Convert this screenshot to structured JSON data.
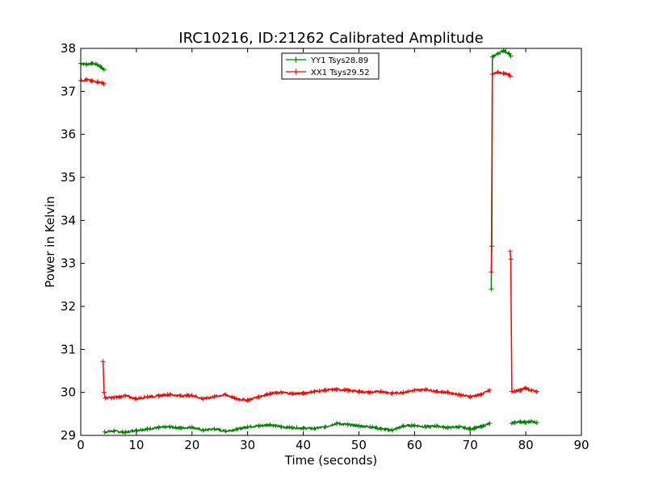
{
  "chart_data": {
    "type": "line",
    "title": "IRC10216, ID:21262 Calibrated Amplitude",
    "xlabel": "Time (seconds)",
    "ylabel": "Power in Kelvin",
    "xlim": [
      0,
      90
    ],
    "ylim": [
      29,
      38
    ],
    "xticks": [
      "0",
      "10",
      "20",
      "30",
      "40",
      "50",
      "60",
      "70",
      "80",
      "90"
    ],
    "yticks": [
      "29",
      "30",
      "31",
      "32",
      "33",
      "34",
      "35",
      "36",
      "37",
      "38"
    ],
    "grid": false,
    "legend_position": "top-center",
    "series": [
      {
        "name": "YY1 Tsys28.89",
        "color": "#008000",
        "marker": "plus",
        "segments": [
          {
            "x": [
              0,
              1,
              2,
              3,
              3.8,
              4.2
            ],
            "y": [
              37.65,
              37.63,
              37.65,
              37.62,
              37.55,
              37.5
            ]
          },
          {
            "x": [
              4.3,
              6,
              8,
              10,
              12,
              14,
              16,
              18,
              20,
              22,
              24,
              26,
              28,
              30,
              32,
              34,
              36,
              38,
              40,
              42,
              44,
              46,
              48,
              50,
              52,
              54,
              56,
              58,
              60,
              62,
              64,
              66,
              68,
              70,
              72,
              73.5
            ],
            "y": [
              29.08,
              29.1,
              29.07,
              29.12,
              29.15,
              29.18,
              29.2,
              29.17,
              29.19,
              29.12,
              29.15,
              29.1,
              29.14,
              29.2,
              29.22,
              29.25,
              29.2,
              29.18,
              29.17,
              29.16,
              29.2,
              29.28,
              29.25,
              29.22,
              29.2,
              29.15,
              29.12,
              29.22,
              29.23,
              29.2,
              29.22,
              29.18,
              29.2,
              29.15,
              29.2,
              29.28
            ]
          },
          {
            "x": [
              73.8,
              74,
              75,
              76,
              77,
              77.3
            ],
            "y": [
              32.4,
              37.8,
              37.88,
              37.95,
              37.88,
              37.82
            ]
          },
          {
            "x": [
              77.5,
              78,
              79,
              80,
              81,
              82
            ],
            "y": [
              29.28,
              29.3,
              29.32,
              29.3,
              29.33,
              29.3
            ]
          }
        ]
      },
      {
        "name": "XX1 Tsys29.52",
        "color": "#ff0000",
        "marker": "plus",
        "segments": [
          {
            "x": [
              0,
              1,
              2,
              3,
              3.8,
              4.2
            ],
            "y": [
              37.25,
              37.27,
              37.24,
              37.22,
              37.2,
              37.18
            ]
          },
          {
            "x": [
              4.0,
              4.2,
              4.4,
              6,
              8,
              10,
              12,
              14,
              16,
              18,
              20,
              22,
              24,
              26,
              28,
              30,
              32,
              34,
              36,
              38,
              40,
              42,
              44,
              46,
              48,
              50,
              52,
              54,
              56,
              58,
              60,
              62,
              64,
              66,
              68,
              70,
              72,
              73.5
            ],
            "y": [
              30.72,
              30.0,
              29.87,
              29.88,
              29.92,
              29.85,
              29.9,
              29.92,
              29.95,
              29.92,
              29.93,
              29.85,
              29.9,
              29.95,
              29.85,
              29.82,
              29.9,
              29.97,
              30.0,
              29.97,
              29.98,
              30.02,
              30.05,
              30.07,
              30.05,
              30.02,
              30.0,
              30.02,
              29.98,
              30.0,
              30.05,
              30.07,
              30.02,
              30.0,
              29.95,
              29.9,
              29.95,
              30.05
            ]
          },
          {
            "x": [
              73.8,
              73.9,
              74,
              75,
              76,
              77,
              77.2
            ],
            "y": [
              32.8,
              33.4,
              37.4,
              37.45,
              37.42,
              37.38,
              37.35
            ]
          },
          {
            "x": [
              77.2,
              77.3,
              77.5,
              78,
              79,
              80,
              81,
              82
            ],
            "y": [
              33.28,
              33.1,
              30.02,
              30.03,
              30.05,
              30.1,
              30.05,
              30.02
            ]
          }
        ]
      }
    ]
  }
}
